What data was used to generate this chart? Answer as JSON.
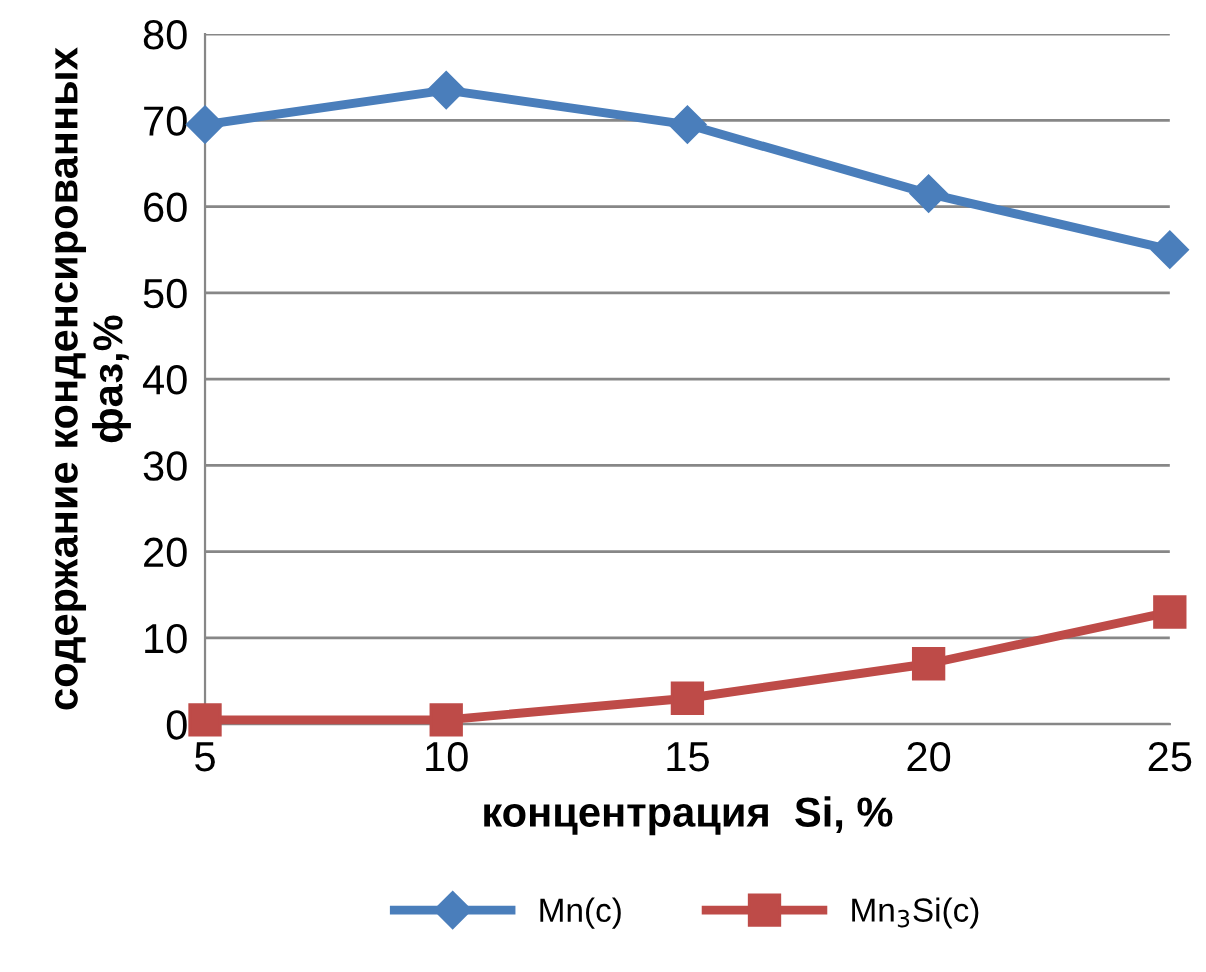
{
  "chart_data": {
    "type": "line",
    "xlabel": "концентрация  Si, %",
    "ylabel": "содержание конденсированных\nфаз,%",
    "x": [
      5,
      10,
      15,
      20,
      25
    ],
    "series": [
      {
        "name": "Mn(c)",
        "color": "#4a7ebb",
        "marker": "diamond",
        "values": [
          69.5,
          73.5,
          69.5,
          61.5,
          55
        ]
      },
      {
        "name": "Mn$_{3}$Si(c)",
        "color": "#be4b48",
        "marker": "square",
        "values": [
          0.5,
          0.5,
          3,
          7,
          13
        ]
      }
    ],
    "xlim": [
      5,
      25
    ],
    "xticks": [
      5,
      10,
      15,
      20,
      25
    ],
    "ylim": [
      0,
      80
    ],
    "yticks": [
      0,
      10,
      20,
      30,
      40,
      50,
      60,
      70,
      80
    ],
    "grid": "y",
    "legend": "bottom",
    "line_style": "solid"
  }
}
